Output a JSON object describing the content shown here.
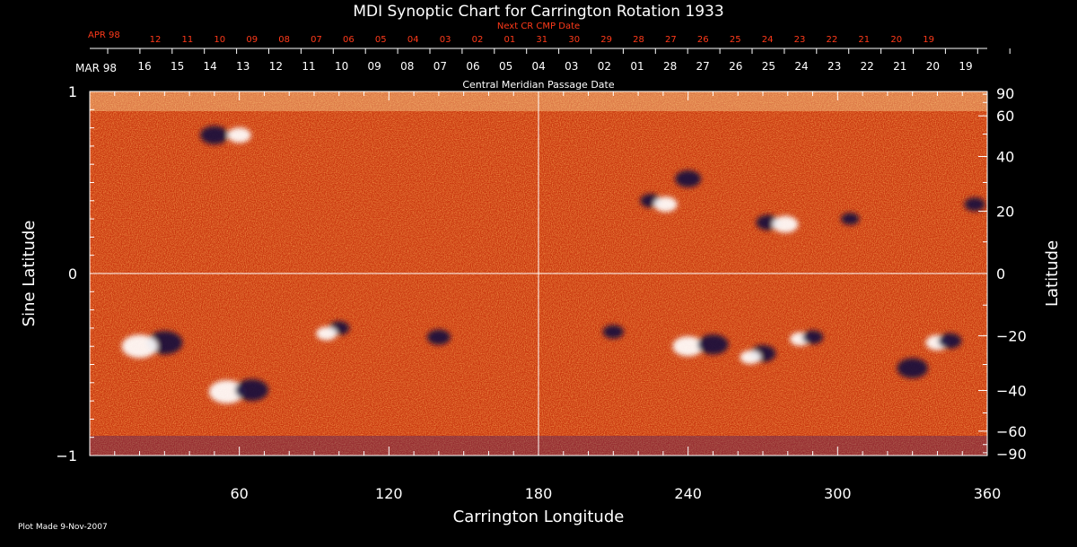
{
  "chart_data": {
    "type": "heatmap",
    "title": "MDI Synoptic Chart for Carrington Rotation 1933",
    "xlabel": "Carrington Longitude",
    "ylabel_left": "Sine Latitude",
    "ylabel_right": "Latitude",
    "xlim": [
      0,
      360
    ],
    "ylim": [
      -1,
      1
    ],
    "x_ticks": [
      60,
      120,
      180,
      240,
      300,
      360
    ],
    "y_left_ticks": [
      1,
      0,
      -1
    ],
    "y_left_tick_labels": [
      "1",
      "0",
      "−1"
    ],
    "y_right_ticks": [
      90,
      60,
      40,
      20,
      0,
      -20,
      -40,
      -60,
      -90
    ],
    "y_right_tick_labels": [
      "90",
      "60",
      "40",
      "20",
      "0",
      "−20",
      "−40",
      "−60",
      "−90"
    ],
    "top_axis": {
      "month_label": "MAR 98",
      "subtitle": "Central Meridian Passage Date",
      "dates": [
        "16",
        "15",
        "14",
        "13",
        "12",
        "11",
        "10",
        "09",
        "08",
        "07",
        "06",
        "05",
        "04",
        "03",
        "02",
        "01",
        "28",
        "27",
        "26",
        "25",
        "24",
        "23",
        "22",
        "21",
        "20",
        "19"
      ]
    },
    "next_cr_axis": {
      "title": "Next CR CMP Date",
      "month_label": "APR 98",
      "dates": [
        "12",
        "11",
        "10",
        "09",
        "08",
        "07",
        "06",
        "05",
        "04",
        "03",
        "02",
        "01",
        "31",
        "30",
        "29",
        "28",
        "27",
        "26",
        "25",
        "24",
        "23",
        "22",
        "21",
        "20",
        "19"
      ]
    },
    "colors": {
      "background": "#000000",
      "field": "#e8501e",
      "positive": "#ffffff",
      "negative": "#14083c",
      "grid": "#ffffff",
      "next_cr": "#ff3a1a"
    },
    "active_regions": [
      {
        "lon": 30,
        "lat": -0.38,
        "polarity": "negative",
        "size": 1.0
      },
      {
        "lon": 20,
        "lat": -0.4,
        "polarity": "positive",
        "size": 1.0
      },
      {
        "lon": 55,
        "lat": -0.65,
        "polarity": "positive",
        "size": 1.0
      },
      {
        "lon": 65,
        "lat": -0.64,
        "polarity": "negative",
        "size": 0.9
      },
      {
        "lon": 50,
        "lat": 0.76,
        "polarity": "negative",
        "size": 0.7
      },
      {
        "lon": 60,
        "lat": 0.76,
        "polarity": "positive",
        "size": 0.5
      },
      {
        "lon": 100,
        "lat": -0.3,
        "polarity": "negative",
        "size": 0.4
      },
      {
        "lon": 95,
        "lat": -0.33,
        "polarity": "positive",
        "size": 0.4
      },
      {
        "lon": 140,
        "lat": -0.35,
        "polarity": "negative",
        "size": 0.5
      },
      {
        "lon": 225,
        "lat": 0.4,
        "polarity": "negative",
        "size": 0.4
      },
      {
        "lon": 231,
        "lat": 0.38,
        "polarity": "positive",
        "size": 0.5
      },
      {
        "lon": 240,
        "lat": 0.52,
        "polarity": "negative",
        "size": 0.6
      },
      {
        "lon": 272,
        "lat": 0.28,
        "polarity": "negative",
        "size": 0.5
      },
      {
        "lon": 279,
        "lat": 0.27,
        "polarity": "positive",
        "size": 0.6
      },
      {
        "lon": 305,
        "lat": 0.3,
        "polarity": "negative",
        "size": 0.3
      },
      {
        "lon": 355,
        "lat": 0.38,
        "polarity": "negative",
        "size": 0.4
      },
      {
        "lon": 240,
        "lat": -0.4,
        "polarity": "positive",
        "size": 0.8
      },
      {
        "lon": 250,
        "lat": -0.39,
        "polarity": "negative",
        "size": 0.8
      },
      {
        "lon": 270,
        "lat": -0.44,
        "polarity": "negative",
        "size": 0.6
      },
      {
        "lon": 265,
        "lat": -0.46,
        "polarity": "positive",
        "size": 0.4
      },
      {
        "lon": 285,
        "lat": -0.36,
        "polarity": "positive",
        "size": 0.4
      },
      {
        "lon": 290,
        "lat": -0.35,
        "polarity": "negative",
        "size": 0.4
      },
      {
        "lon": 340,
        "lat": -0.38,
        "polarity": "positive",
        "size": 0.5
      },
      {
        "lon": 345,
        "lat": -0.37,
        "polarity": "negative",
        "size": 0.5
      },
      {
        "lon": 330,
        "lat": -0.52,
        "polarity": "negative",
        "size": 0.8
      },
      {
        "lon": 210,
        "lat": -0.32,
        "polarity": "negative",
        "size": 0.4
      }
    ]
  },
  "footer": {
    "plot_made": "Plot Made  9-Nov-2007"
  }
}
